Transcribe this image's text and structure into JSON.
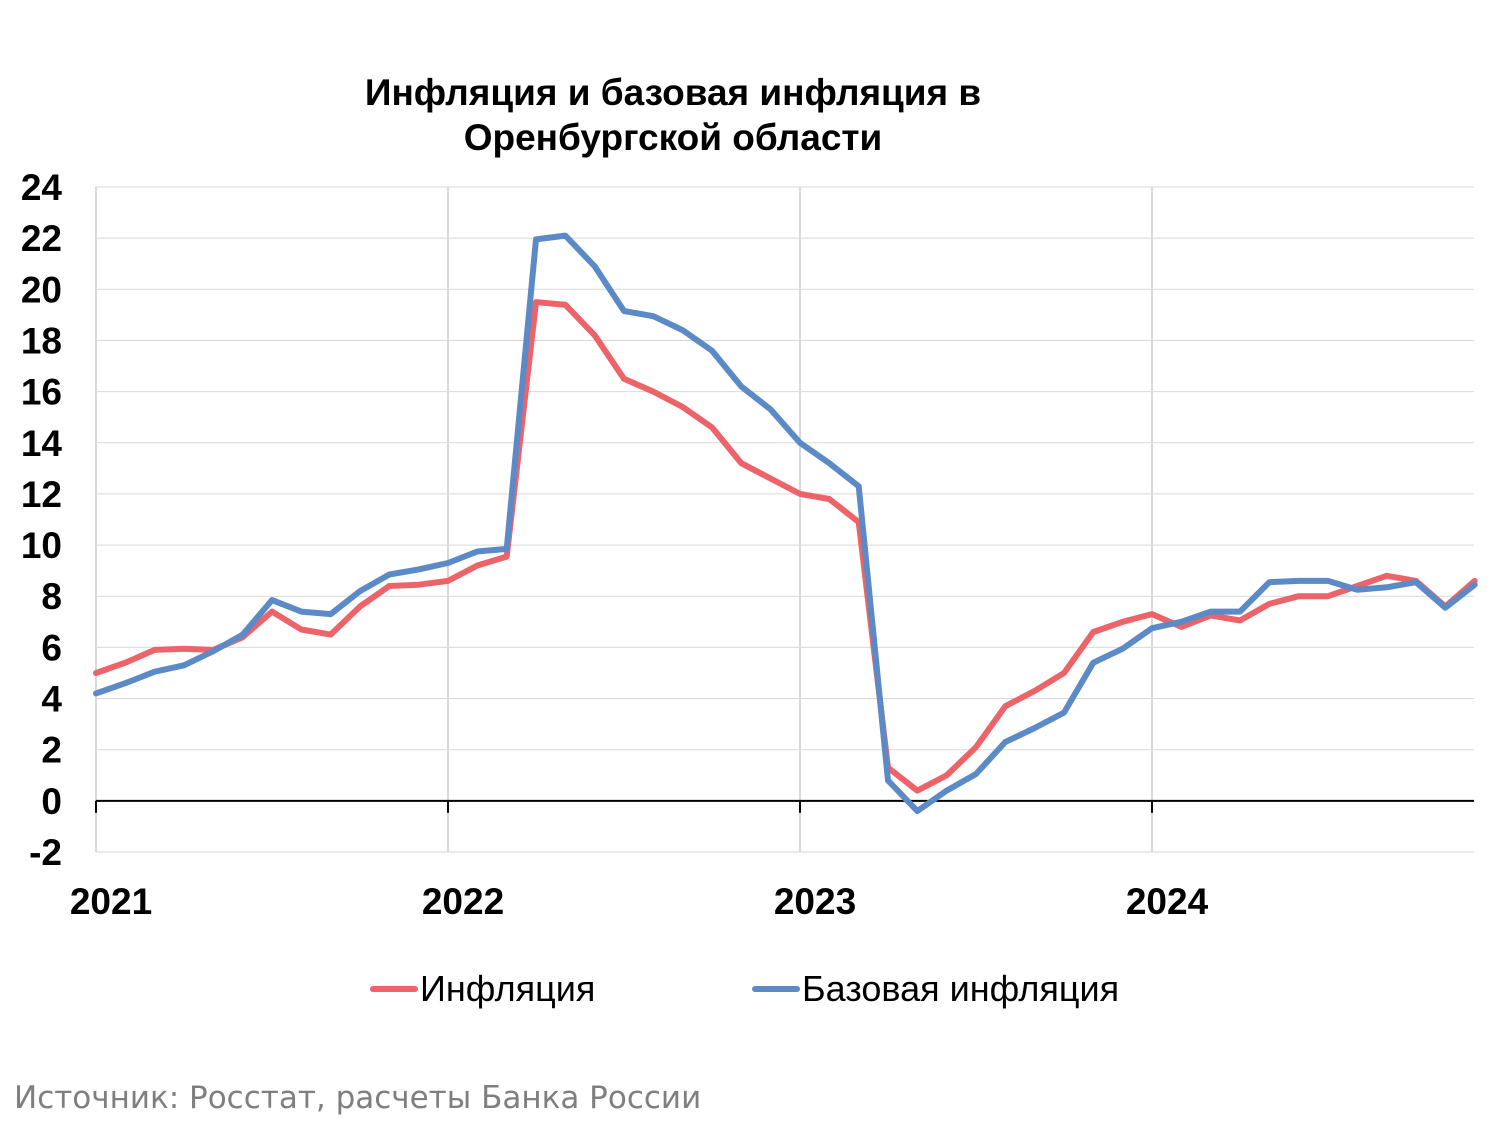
{
  "chart_data": {
    "type": "line",
    "title_lines": [
      "Инфляция и базовая инфляция в",
      "Оренбургской области"
    ],
    "ylim": [
      -2,
      24
    ],
    "yticks": [
      -2,
      0,
      2,
      4,
      6,
      8,
      10,
      12,
      14,
      16,
      18,
      20,
      22,
      24
    ],
    "xlabels": [
      "2021",
      "2022",
      "2023",
      "2024"
    ],
    "grid": true,
    "legend_position": "bottom",
    "x": [
      "2021-01",
      "2021-02",
      "2021-03",
      "2021-04",
      "2021-05",
      "2021-06",
      "2021-07",
      "2021-08",
      "2021-09",
      "2021-10",
      "2021-11",
      "2021-12",
      "2022-01",
      "2022-02",
      "2022-03",
      "2022-04",
      "2022-05",
      "2022-06",
      "2022-07",
      "2022-08",
      "2022-09",
      "2022-10",
      "2022-11",
      "2022-12",
      "2023-01",
      "2023-02",
      "2023-03",
      "2023-04",
      "2023-05",
      "2023-06",
      "2023-07",
      "2023-08",
      "2023-09",
      "2023-10",
      "2023-11",
      "2023-12",
      "2024-01",
      "2024-02",
      "2024-03",
      "2024-04",
      "2024-05",
      "2024-06",
      "2024-07",
      "2024-08",
      "2024-09",
      "2024-10",
      "2024-11",
      "2024-12"
    ],
    "series": [
      {
        "name": "Инфляция",
        "color": "#ec6469",
        "values": [
          5.0,
          5.4,
          5.9,
          5.95,
          5.9,
          6.4,
          7.4,
          6.7,
          6.5,
          7.6,
          8.4,
          8.45,
          8.6,
          9.2,
          9.55,
          19.5,
          19.4,
          18.2,
          16.5,
          16.0,
          15.4,
          14.6,
          13.2,
          12.6,
          12.0,
          11.8,
          10.9,
          1.3,
          0.4,
          1.0,
          2.1,
          3.7,
          4.3,
          5.0,
          6.6,
          7.0,
          7.3,
          6.8,
          7.25,
          7.05,
          7.7,
          8.0,
          8.0,
          8.4,
          8.8,
          8.6,
          7.6,
          8.6
        ]
      },
      {
        "name": "Базовая инфляция",
        "color": "#5b8ac6",
        "values": [
          4.2,
          4.6,
          5.05,
          5.3,
          5.85,
          6.5,
          7.85,
          7.4,
          7.3,
          8.2,
          8.85,
          9.05,
          9.3,
          9.75,
          9.85,
          21.95,
          22.1,
          20.9,
          19.15,
          18.95,
          18.4,
          17.6,
          16.2,
          15.3,
          14.0,
          13.2,
          12.3,
          0.8,
          -0.4,
          0.4,
          1.05,
          2.3,
          2.85,
          3.45,
          5.4,
          5.95,
          6.75,
          7.0,
          7.4,
          7.4,
          8.55,
          8.6,
          8.6,
          8.25,
          8.35,
          8.55,
          7.55,
          8.45
        ]
      }
    ]
  },
  "source_note": "Источник: Росстат, расчеты Банка России"
}
